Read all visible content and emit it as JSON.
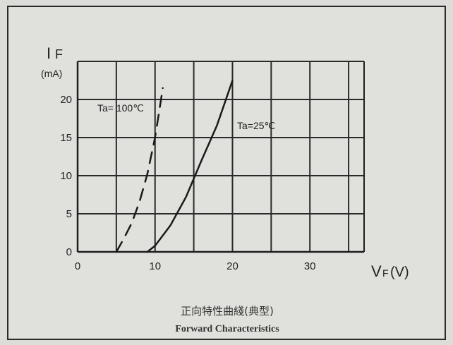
{
  "chart_data": {
    "type": "line",
    "title_cn": "正向特性曲綫(典型)",
    "title_en": "Forward Characteristics",
    "ylabel_main": "I",
    "ylabel_sub": "F",
    "ylabel_unit": "(mA)",
    "xlabel_main": "V",
    "xlabel_sub": "F",
    "xlabel_unit": "(V)",
    "x_ticks": [
      0,
      10,
      20,
      30
    ],
    "y_ticks": [
      0,
      5,
      10,
      15,
      20
    ],
    "xlim": [
      0,
      37
    ],
    "ylim": [
      0,
      25
    ],
    "grid": true,
    "series": [
      {
        "name": "Ta= 100℃",
        "style": "dashed",
        "x": [
          5,
          6,
          7,
          8,
          9,
          10,
          10.5,
          11
        ],
        "y": [
          0,
          1.8,
          3.8,
          6.6,
          10.2,
          15,
          18.2,
          21.5
        ]
      },
      {
        "name": "Ta=25℃",
        "style": "solid",
        "x": [
          9,
          10,
          12,
          14,
          15,
          16,
          18,
          20
        ],
        "y": [
          0,
          0.8,
          3.5,
          7.2,
          9.6,
          12,
          16.6,
          22.5
        ]
      }
    ]
  }
}
